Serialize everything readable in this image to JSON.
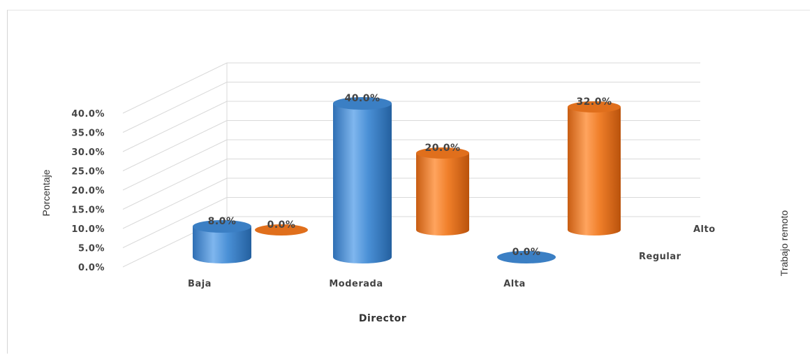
{
  "chart_data": {
    "type": "bar",
    "subtype": "3d-cylinder",
    "title": "",
    "xlabel": "Director",
    "ylabel": "Porcentaje",
    "zlabel": "Trabajo remoto",
    "ylim": [
      0,
      40
    ],
    "yticks": [
      "0.0%",
      "5.0%",
      "10.0%",
      "15.0%",
      "20.0%",
      "25.0%",
      "30.0%",
      "35.0%",
      "40.0%"
    ],
    "categories": [
      "Baja",
      "Moderada",
      "Alta"
    ],
    "series": [
      {
        "name": "Regular",
        "values": [
          8.0,
          40.0,
          0.0
        ],
        "labels": [
          "8.0%",
          "40.0%",
          "0.0%"
        ],
        "color": "#4a90d6"
      },
      {
        "name": "Alto",
        "values": [
          0.0,
          20.0,
          32.0
        ],
        "labels": [
          "0.0%",
          "20.0%",
          "32.0%"
        ],
        "color": "#f07f2a"
      }
    ],
    "grid": true,
    "legend": "none"
  }
}
